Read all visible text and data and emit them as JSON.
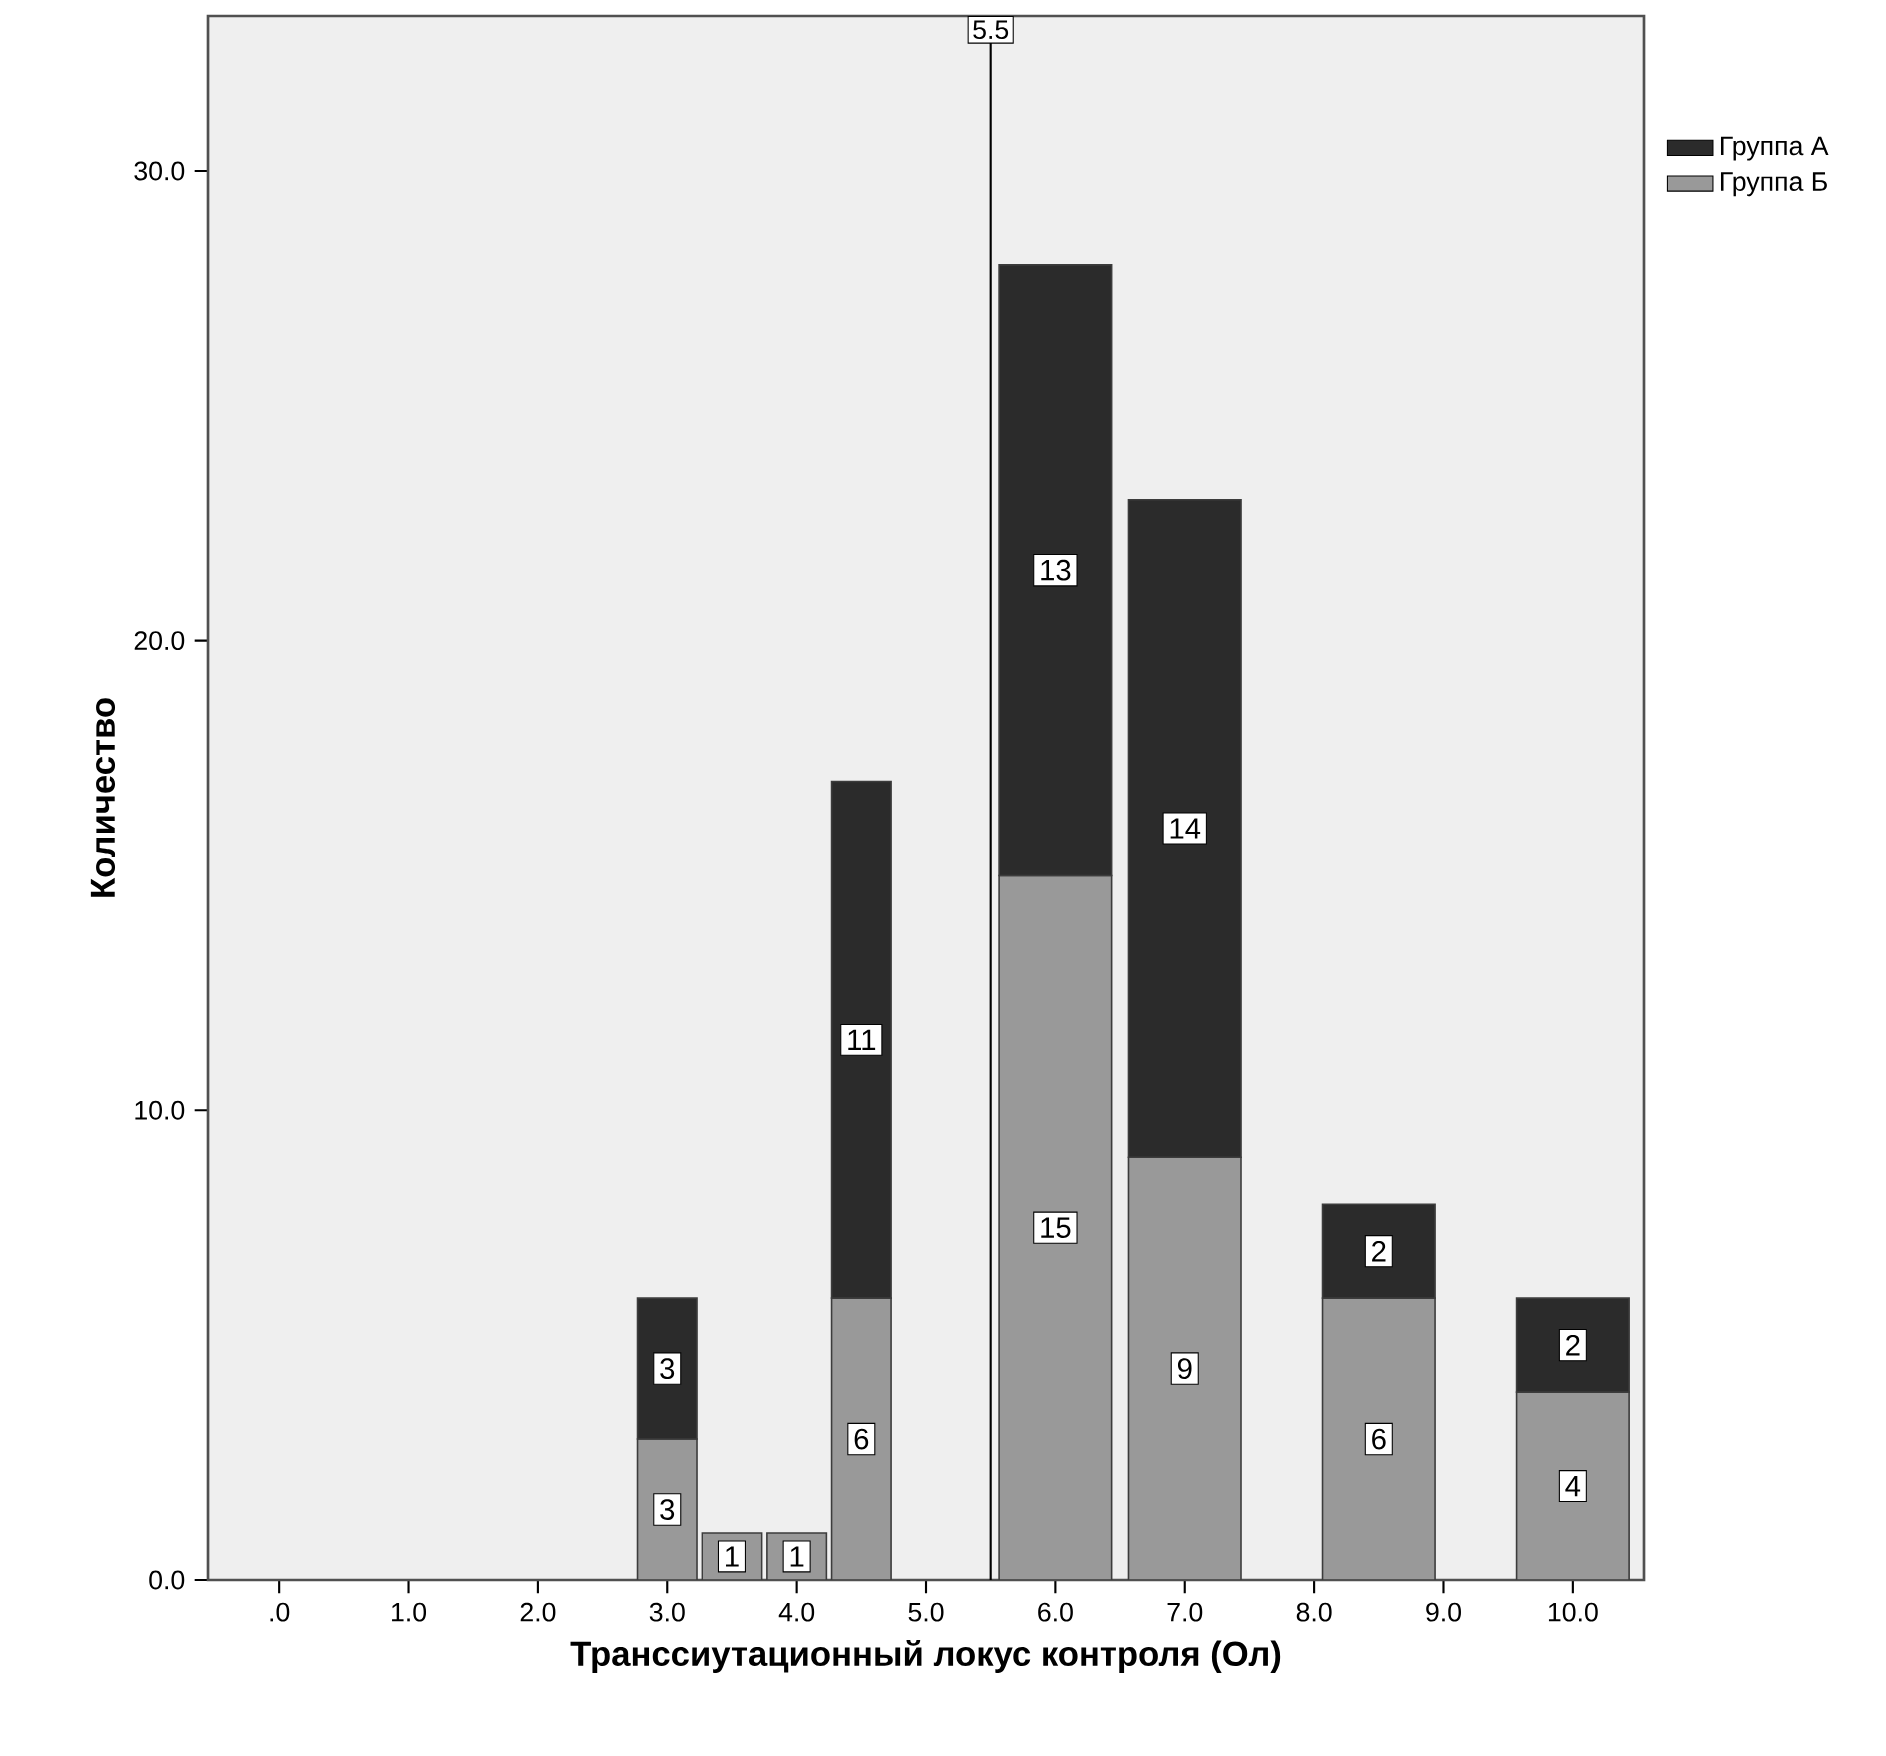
{
  "chart_data": {
    "type": "bar",
    "xlabel": "Транссиутационный локус контроля (Ол)",
    "ylabel": "Количество",
    "x": [
      3,
      3.5,
      4,
      4.5,
      6,
      7,
      8.5,
      10
    ],
    "stacked": true,
    "series": [
      {
        "name": "Группа Б",
        "color": "#999999",
        "values": [
          3,
          1,
          1,
          6,
          15,
          9,
          6,
          4
        ]
      },
      {
        "name": "Группа А",
        "color": "#2b2b2b",
        "values": [
          3,
          null,
          null,
          11,
          13,
          14,
          2,
          2
        ]
      }
    ],
    "xlim": [
      -0.55,
      10.55
    ],
    "ylim": [
      0,
      33.3
    ],
    "xticks": [
      {
        "value": 0,
        "label": ".0"
      },
      {
        "value": 1,
        "label": "1.0"
      },
      {
        "value": 2,
        "label": "2.0"
      },
      {
        "value": 3,
        "label": "3.0"
      },
      {
        "value": 4,
        "label": "4.0"
      },
      {
        "value": 5,
        "label": "5.0"
      },
      {
        "value": 6,
        "label": "6.0"
      },
      {
        "value": 7,
        "label": "7.0"
      },
      {
        "value": 8,
        "label": "8.0"
      },
      {
        "value": 9,
        "label": "9.0"
      },
      {
        "value": 10,
        "label": "10.0"
      }
    ],
    "yticks": [
      {
        "value": 0,
        "label": "0.0"
      },
      {
        "value": 10,
        "label": "10.0"
      },
      {
        "value": 20,
        "label": "20.0"
      },
      {
        "value": 30,
        "label": "30.0"
      }
    ],
    "ref_lines": [
      {
        "axis": "x",
        "value": 5.5,
        "label": "5.5"
      }
    ],
    "data_labels": true,
    "legend": "top right"
  }
}
